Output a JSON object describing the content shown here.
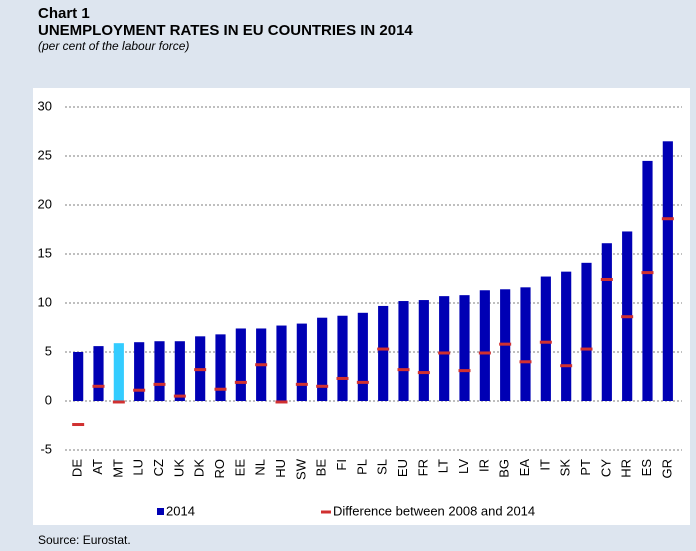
{
  "chart_data": {
    "type": "bar",
    "label": "Chart 1",
    "title": "UNEMPLOYMENT RATES IN EU COUNTRIES IN 2014",
    "subtitle": "(per cent of the labour force)",
    "source": "Source: Eurostat.",
    "categories": [
      "DE",
      "AT",
      "MT",
      "LU",
      "CZ",
      "UK",
      "DK",
      "RO",
      "EE",
      "NL",
      "HU",
      "SW",
      "BE",
      "FI",
      "PL",
      "SL",
      "EU",
      "FR",
      "LT",
      "LV",
      "IR",
      "BG",
      "EA",
      "IT",
      "SK",
      "PT",
      "CY",
      "HR",
      "ES",
      "GR"
    ],
    "series": [
      {
        "name": "2014",
        "color": "#0000b4",
        "colors": [
          "#0000b4",
          "#0000b4",
          "#33ccff",
          "#0000b4",
          "#0000b4",
          "#0000b4",
          "#0000b4",
          "#0000b4",
          "#0000b4",
          "#0000b4",
          "#0000b4",
          "#0000b4",
          "#0000b4",
          "#0000b4",
          "#0000b4",
          "#0000b4",
          "#0000b4",
          "#0000b4",
          "#0000b4",
          "#0000b4",
          "#0000b4",
          "#0000b4",
          "#0000b4",
          "#0000b4",
          "#0000b4",
          "#0000b4",
          "#0000b4",
          "#0000b4",
          "#0000b4",
          "#0000b4"
        ],
        "values": [
          5.0,
          5.6,
          5.9,
          6.0,
          6.1,
          6.1,
          6.6,
          6.8,
          7.4,
          7.4,
          7.7,
          7.9,
          8.5,
          8.7,
          9.0,
          9.7,
          10.2,
          10.3,
          10.7,
          10.8,
          11.3,
          11.4,
          11.6,
          12.7,
          13.2,
          14.1,
          16.1,
          17.3,
          24.5,
          26.5
        ]
      },
      {
        "name": "Difference between 2008 and 2014",
        "color": "#d03030",
        "marker": "dash",
        "values": [
          -2.4,
          1.5,
          -0.1,
          1.1,
          1.7,
          0.5,
          3.2,
          1.2,
          1.9,
          3.7,
          -0.1,
          1.7,
          1.5,
          2.3,
          1.9,
          5.3,
          3.2,
          2.9,
          4.9,
          3.1,
          4.9,
          5.8,
          4.0,
          6.0,
          3.6,
          5.3,
          12.4,
          8.6,
          13.1,
          18.6
        ]
      }
    ],
    "ylim": [
      -5,
      30
    ],
    "yticks": [
      -5,
      0,
      5,
      10,
      15,
      20,
      25,
      30
    ],
    "grid": true
  }
}
